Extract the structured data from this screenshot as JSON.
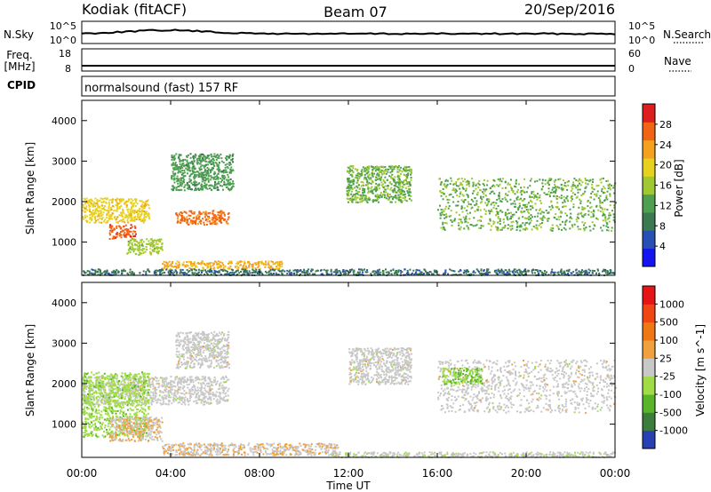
{
  "header": {
    "title_left": "Kodiak (fitACF)",
    "title_center": "Beam 07",
    "title_right": "20/Sep/2016"
  },
  "aux": {
    "nsky_label": "N.Sky",
    "nsky_ticks": [
      "10^5",
      "10^0"
    ],
    "nsearch_label": "N.Search",
    "nsearch_ticks": [
      "10^5",
      "10^0"
    ],
    "freq_label": "Freq.",
    "freq_unit": "[MHz]",
    "freq_ticks": [
      "18",
      "8"
    ],
    "nave_label": "Nave",
    "nave_ticks": [
      "60",
      "0"
    ],
    "cpid_label": "CPID",
    "cpid_text": "normalsound (fast) 157 RF"
  },
  "chart_data": [
    {
      "type": "heatmap",
      "panel": "power",
      "ylabel": "Slant Range [km]",
      "ylim": [
        180,
        4500
      ],
      "yticks": [
        "1000",
        "2000",
        "3000",
        "4000"
      ],
      "colorbar": {
        "label": "Power [dB]",
        "range": [
          0,
          32
        ],
        "ticks": [
          "4",
          "8",
          "12",
          "16",
          "20",
          "24",
          "28"
        ],
        "colors": [
          "#1414f0",
          "#2850b4",
          "#3c7850",
          "#4ea050",
          "#a0c832",
          "#e6d21e",
          "#f5a01e",
          "#f06414",
          "#dc1e1e"
        ]
      },
      "regions": [
        {
          "t0": 0.0,
          "t1": 3.0,
          "r0": 1500,
          "r1": 2100,
          "level": 20
        },
        {
          "t0": 1.2,
          "t1": 2.4,
          "r0": 1100,
          "r1": 1450,
          "level": 27
        },
        {
          "t0": 4.2,
          "t1": 6.6,
          "r0": 1450,
          "r1": 1800,
          "level": 26
        },
        {
          "t0": 2.0,
          "t1": 3.6,
          "r0": 700,
          "r1": 1100,
          "level": 16
        },
        {
          "t0": 3.6,
          "t1": 9.0,
          "r0": 350,
          "r1": 550,
          "level": 22
        },
        {
          "t0": 4.0,
          "t1": 6.8,
          "r0": 2300,
          "r1": 3200,
          "level": 12
        },
        {
          "t0": 11.9,
          "t1": 14.8,
          "r0": 2000,
          "r1": 2900,
          "level": 14
        },
        {
          "t0": 16.0,
          "t1": 24.0,
          "r0": 1300,
          "r1": 2600,
          "level": 14
        },
        {
          "t0": 0.0,
          "t1": 24.0,
          "r0": 200,
          "r1": 350,
          "level": 8
        }
      ]
    },
    {
      "type": "heatmap",
      "panel": "velocity",
      "ylabel": "Slant Range [km]",
      "ylim": [
        180,
        4500
      ],
      "yticks": [
        "1000",
        "2000",
        "3000",
        "4000"
      ],
      "colorbar": {
        "label": "Velocity [m s^-1]",
        "range": [
          -1250,
          1250
        ],
        "ticks": [
          "1000",
          "500",
          "100",
          "25",
          "-25",
          "-100",
          "-500",
          "-1000"
        ],
        "colors": [
          "#2840b4",
          "#3c7c3c",
          "#58b428",
          "#a0dc46",
          "#c8c8c8",
          "#f0a03c",
          "#f07814",
          "#f04614",
          "#e61414"
        ]
      },
      "regions": [
        {
          "t0": 0.0,
          "t1": 6.6,
          "r0": 1500,
          "r1": 2200,
          "level": 0
        },
        {
          "t0": 0.0,
          "t1": 3.0,
          "r0": 700,
          "r1": 2300,
          "level": -300
        },
        {
          "t0": 1.2,
          "t1": 3.6,
          "r0": 600,
          "r1": 1200,
          "level": 120
        },
        {
          "t0": 3.6,
          "t1": 11.5,
          "r0": 250,
          "r1": 550,
          "level": 110
        },
        {
          "t0": 4.2,
          "t1": 6.6,
          "r0": 2400,
          "r1": 3300,
          "level": 0
        },
        {
          "t0": 12.0,
          "t1": 14.8,
          "r0": 2000,
          "r1": 2900,
          "level": 0
        },
        {
          "t0": 16.0,
          "t1": 24.0,
          "r0": 1300,
          "r1": 2600,
          "level": 0
        },
        {
          "t0": 16.2,
          "t1": 18.0,
          "r0": 2000,
          "r1": 2400,
          "level": -400
        },
        {
          "t0": 11.0,
          "t1": 24.0,
          "r0": 200,
          "r1": 330,
          "level": -40
        }
      ]
    }
  ],
  "xaxis": {
    "label": "Time UT",
    "ticks": [
      "00:00",
      "04:00",
      "08:00",
      "12:00",
      "16:00",
      "20:00",
      "00:00"
    ]
  }
}
